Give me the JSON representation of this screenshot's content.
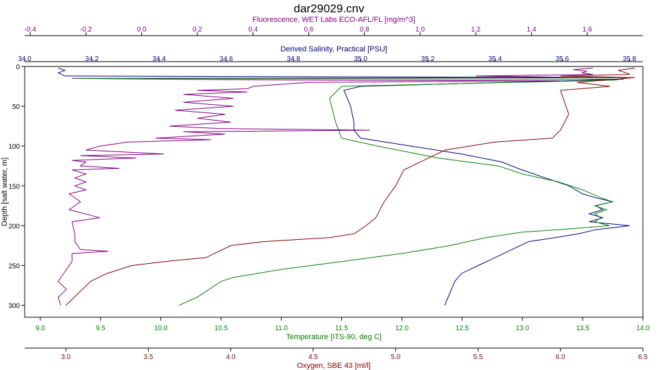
{
  "chart_data": {
    "type": "line",
    "title": "dar29029.cnv",
    "grid": false,
    "legend": "none",
    "y_axis": {
      "label": "Depth [salt water, m]",
      "range": [
        0,
        315
      ],
      "inverted": true,
      "ticks": [
        "0",
        "50",
        "100",
        "150",
        "200",
        "250",
        "300"
      ]
    },
    "x_axes": [
      {
        "id": "fluorescence",
        "position": "top-outer",
        "label": "Fluorescence, WET Labs ECO-AFL/FL [mg/m^3]",
        "color": "#800080",
        "range": [
          -0.42,
          1.8
        ],
        "ticks": [
          "-0.4",
          "-0.2",
          "0.0",
          "0.2",
          "0.4",
          "0.6",
          "0.8",
          "1.0",
          "1.2",
          "1.4",
          "1.6"
        ]
      },
      {
        "id": "salinity",
        "position": "top-inner",
        "label": "Derived Salinity, Practical [PSU]",
        "color": "#000080",
        "range": [
          34.0,
          35.84
        ],
        "ticks": [
          "34.0",
          "34.2",
          "34.4",
          "34.6",
          "34.8",
          "35.0",
          "35.2",
          "35.4",
          "35.6",
          "35.8"
        ]
      },
      {
        "id": "temperature",
        "position": "bottom-inner",
        "label": "Temperature [ITS-90, deg C]",
        "color": "#008000",
        "range": [
          8.87,
          14.0
        ],
        "ticks": [
          "9.0",
          "9.5",
          "10.0",
          "10.5",
          "11.0",
          "11.5",
          "12.0",
          "12.5",
          "13.0",
          "13.5",
          "14.0"
        ]
      },
      {
        "id": "oxygen",
        "position": "bottom-outer",
        "label": "Oxygen, SBE 43 [ml/l]",
        "color": "#800000",
        "range": [
          2.75,
          6.5
        ],
        "ticks": [
          "3.0",
          "3.5",
          "4.0",
          "4.5",
          "5.0",
          "5.5",
          "6.0",
          "6.5"
        ]
      }
    ],
    "series": [
      {
        "axis": "fluorescence",
        "color": "#800080",
        "points": [
          [
            1.62,
            2
          ],
          [
            1.55,
            4
          ],
          [
            1.6,
            6
          ],
          [
            1.58,
            8
          ],
          [
            1.62,
            10
          ],
          [
            1.2,
            12
          ],
          [
            1.62,
            14
          ],
          [
            -0.25,
            15
          ],
          [
            0.5,
            17
          ],
          [
            1.5,
            18
          ],
          [
            0.6,
            20
          ],
          [
            0.4,
            25
          ],
          [
            0.38,
            28
          ],
          [
            0.2,
            30
          ],
          [
            0.38,
            32
          ],
          [
            0.15,
            35
          ],
          [
            0.33,
            40
          ],
          [
            0.15,
            45
          ],
          [
            0.33,
            50
          ],
          [
            0.12,
            55
          ],
          [
            0.3,
            60
          ],
          [
            0.2,
            65
          ],
          [
            0.32,
            70
          ],
          [
            0.1,
            75
          ],
          [
            0.28,
            78
          ],
          [
            0.82,
            80
          ],
          [
            0.15,
            82
          ],
          [
            0.3,
            85
          ],
          [
            0.05,
            90
          ],
          [
            0.25,
            92
          ],
          [
            -0.05,
            95
          ],
          [
            -0.15,
            100
          ],
          [
            -0.2,
            105
          ],
          [
            0.08,
            110
          ],
          [
            -0.22,
            112
          ],
          [
            -0.02,
            115
          ],
          [
            -0.25,
            118
          ],
          [
            -0.2,
            120
          ],
          [
            -0.22,
            125
          ],
          [
            -0.08,
            128
          ],
          [
            -0.25,
            130
          ],
          [
            -0.2,
            135
          ],
          [
            -0.24,
            140
          ],
          [
            -0.2,
            145
          ],
          [
            -0.24,
            150
          ],
          [
            -0.2,
            155
          ],
          [
            -0.26,
            160
          ],
          [
            -0.22,
            170
          ],
          [
            -0.26,
            180
          ],
          [
            -0.15,
            190
          ],
          [
            -0.25,
            195
          ],
          [
            -0.24,
            210
          ],
          [
            -0.24,
            220
          ],
          [
            -0.22,
            230
          ],
          [
            -0.12,
            232
          ],
          [
            -0.25,
            235
          ],
          [
            -0.25,
            245
          ],
          [
            -0.28,
            260
          ],
          [
            -0.3,
            270
          ],
          [
            -0.27,
            280
          ],
          [
            -0.3,
            290
          ],
          [
            -0.29,
            300
          ]
        ]
      },
      {
        "axis": "salinity",
        "color": "#000080",
        "points": [
          [
            34.1,
            2
          ],
          [
            34.12,
            5
          ],
          [
            34.1,
            8
          ],
          [
            34.12,
            12
          ],
          [
            35.79,
            14
          ],
          [
            35.78,
            16
          ],
          [
            35.0,
            25
          ],
          [
            34.95,
            30
          ],
          [
            34.97,
            50
          ],
          [
            34.98,
            70
          ],
          [
            34.98,
            80
          ],
          [
            35.0,
            90
          ],
          [
            35.15,
            100
          ],
          [
            35.3,
            110
          ],
          [
            35.42,
            120
          ],
          [
            35.48,
            130
          ],
          [
            35.55,
            140
          ],
          [
            35.62,
            150
          ],
          [
            35.66,
            160
          ],
          [
            35.7,
            165
          ],
          [
            35.75,
            170
          ],
          [
            35.7,
            175
          ],
          [
            35.72,
            180
          ],
          [
            35.68,
            185
          ],
          [
            35.72,
            190
          ],
          [
            35.68,
            195
          ],
          [
            35.8,
            200
          ],
          [
            35.7,
            205
          ],
          [
            35.65,
            210
          ],
          [
            35.58,
            215
          ],
          [
            35.5,
            220
          ],
          [
            35.45,
            230
          ],
          [
            35.4,
            240
          ],
          [
            35.35,
            250
          ],
          [
            35.3,
            260
          ],
          [
            35.28,
            270
          ],
          [
            35.27,
            280
          ],
          [
            35.26,
            290
          ],
          [
            35.25,
            300
          ]
        ]
      },
      {
        "axis": "temperature",
        "color": "#008000",
        "points": [
          [
            9.3,
            15
          ],
          [
            13.8,
            16
          ],
          [
            13.78,
            17
          ],
          [
            11.5,
            25
          ],
          [
            11.4,
            40
          ],
          [
            11.45,
            70
          ],
          [
            11.5,
            90
          ],
          [
            11.8,
            100
          ],
          [
            12.3,
            115
          ],
          [
            12.8,
            125
          ],
          [
            13.0,
            135
          ],
          [
            13.3,
            145
          ],
          [
            13.5,
            155
          ],
          [
            13.65,
            165
          ],
          [
            13.75,
            170
          ],
          [
            13.6,
            175
          ],
          [
            13.7,
            180
          ],
          [
            13.6,
            185
          ],
          [
            13.65,
            190
          ],
          [
            13.6,
            195
          ],
          [
            13.72,
            200
          ],
          [
            13.3,
            205
          ],
          [
            13.0,
            208
          ],
          [
            12.7,
            215
          ],
          [
            12.4,
            225
          ],
          [
            12.0,
            235
          ],
          [
            11.5,
            245
          ],
          [
            11.0,
            255
          ],
          [
            10.6,
            265
          ],
          [
            10.5,
            270
          ],
          [
            10.4,
            280
          ],
          [
            10.3,
            290
          ],
          [
            10.15,
            300
          ]
        ]
      },
      {
        "axis": "oxygen",
        "color": "#800000",
        "points": [
          [
            6.45,
            2
          ],
          [
            6.35,
            5
          ],
          [
            6.4,
            8
          ],
          [
            6.42,
            10
          ],
          [
            6.0,
            12
          ],
          [
            6.45,
            14
          ],
          [
            6.1,
            20
          ],
          [
            6.3,
            25
          ],
          [
            6.0,
            30
          ],
          [
            6.05,
            60
          ],
          [
            6.0,
            80
          ],
          [
            5.95,
            90
          ],
          [
            5.6,
            95
          ],
          [
            5.3,
            105
          ],
          [
            5.2,
            115
          ],
          [
            5.05,
            130
          ],
          [
            5.0,
            150
          ],
          [
            4.93,
            170
          ],
          [
            4.88,
            190
          ],
          [
            4.82,
            200
          ],
          [
            4.75,
            210
          ],
          [
            4.6,
            215
          ],
          [
            4.2,
            220
          ],
          [
            4.0,
            225
          ],
          [
            3.85,
            240
          ],
          [
            3.6,
            245
          ],
          [
            3.4,
            250
          ],
          [
            3.25,
            260
          ],
          [
            3.15,
            270
          ],
          [
            3.1,
            280
          ],
          [
            3.05,
            290
          ],
          [
            3.0,
            300
          ]
        ]
      }
    ]
  }
}
